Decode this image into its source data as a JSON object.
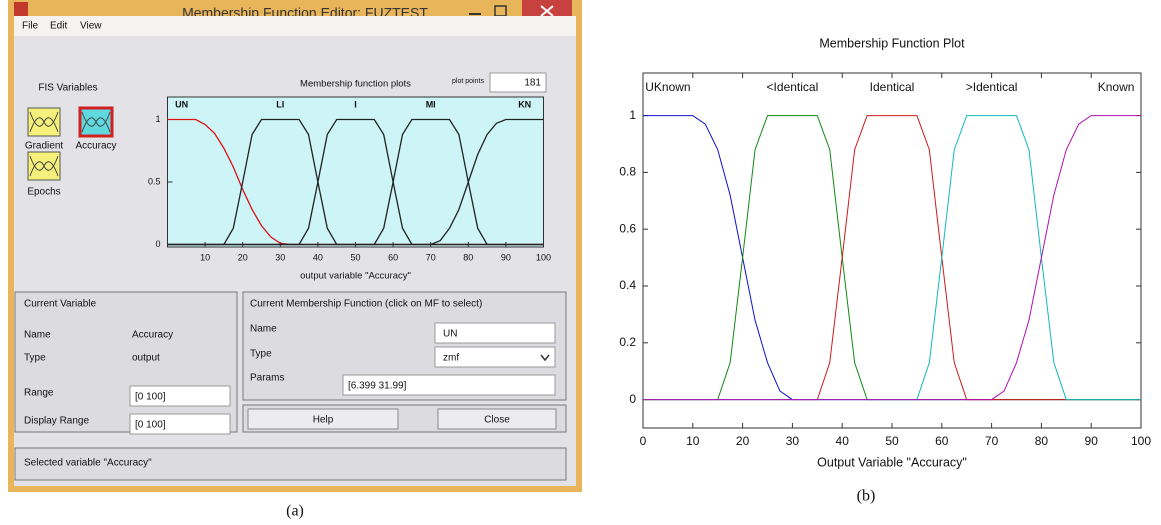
{
  "window": {
    "title": "Membership Function Editor: FUZTEST",
    "menu": [
      "File",
      "Edit",
      "View"
    ],
    "fis_variables_label": "FIS Variables",
    "variables": [
      "Gradient",
      "Accuracy",
      "Epochs"
    ],
    "plot_points_label": "plot points",
    "plot_points": 181,
    "current_variable": {
      "title": "Current Variable",
      "rows": [
        [
          "Name",
          "Accuracy"
        ],
        [
          "Type",
          "output"
        ],
        [
          "Range",
          "[0 100]"
        ],
        [
          "Display Range",
          "[0 100]"
        ]
      ]
    },
    "current_mf": {
      "title": "Current Membership Function (click on MF to select)",
      "rows": [
        [
          "Name",
          "UN"
        ],
        [
          "Type",
          "zmf"
        ],
        [
          "Params",
          "[6.399 31.99]"
        ]
      ]
    },
    "buttons": [
      "Help",
      "Close"
    ],
    "status": "Selected variable \"Accuracy\""
  },
  "captions": [
    "(a)",
    "(b)"
  ],
  "chart_data": [
    {
      "type": "line",
      "title": "Membership function plots",
      "xlabel": "output variable \"Accuracy\"",
      "x": [
        0,
        2.5,
        5,
        7.5,
        10,
        12.5,
        15,
        17.5,
        20,
        22.5,
        25,
        27.5,
        30,
        32.5,
        35,
        37.5,
        40,
        42.5,
        45,
        47.5,
        50,
        52.5,
        55,
        57.5,
        60,
        62.5,
        65,
        67.5,
        70,
        72.5,
        75,
        77.5,
        80,
        82.5,
        85,
        87.5,
        90,
        92.5,
        95,
        97.5,
        100
      ],
      "xlim": [
        0,
        100
      ],
      "xticks": [
        10,
        20,
        30,
        40,
        50,
        60,
        70,
        80,
        90,
        100
      ],
      "ylim": [
        -0.02,
        1.18
      ],
      "yticks": [
        0,
        0.5,
        1
      ],
      "series": [
        {
          "name": "UN",
          "color": "#dd1111",
          "values": [
            1,
            1,
            1,
            1,
            0.96,
            0.89,
            0.77,
            0.62,
            0.44,
            0.28,
            0.15,
            0.06,
            0.01,
            0,
            0,
            0,
            0,
            0,
            0,
            0,
            0,
            0,
            0,
            0,
            0,
            0,
            0,
            0,
            0,
            0,
            0,
            0,
            0,
            0,
            0,
            0,
            0,
            0,
            0,
            0,
            0
          ]
        },
        {
          "name": "LI",
          "color": "#222222",
          "values": [
            0,
            0,
            0,
            0,
            0,
            0,
            0,
            0.13,
            0.5,
            0.88,
            1,
            1,
            1,
            1,
            1,
            0.88,
            0.5,
            0.13,
            0,
            0,
            0,
            0,
            0,
            0,
            0,
            0,
            0,
            0,
            0,
            0,
            0,
            0,
            0,
            0,
            0,
            0,
            0,
            0,
            0,
            0,
            0
          ]
        },
        {
          "name": "I",
          "color": "#222222",
          "values": [
            0,
            0,
            0,
            0,
            0,
            0,
            0,
            0,
            0,
            0,
            0,
            0,
            0,
            0,
            0,
            0.13,
            0.5,
            0.88,
            1,
            1,
            1,
            1,
            1,
            0.88,
            0.5,
            0.13,
            0,
            0,
            0,
            0,
            0,
            0,
            0,
            0,
            0,
            0,
            0,
            0,
            0,
            0,
            0
          ]
        },
        {
          "name": "MI",
          "color": "#222222",
          "values": [
            0,
            0,
            0,
            0,
            0,
            0,
            0,
            0,
            0,
            0,
            0,
            0,
            0,
            0,
            0,
            0,
            0,
            0,
            0,
            0,
            0,
            0,
            0,
            0.13,
            0.5,
            0.88,
            1,
            1,
            1,
            1,
            1,
            0.88,
            0.5,
            0.13,
            0,
            0,
            0,
            0,
            0,
            0,
            0
          ]
        },
        {
          "name": "KN",
          "color": "#222222",
          "values": [
            0,
            0,
            0,
            0,
            0,
            0,
            0,
            0,
            0,
            0,
            0,
            0,
            0,
            0,
            0,
            0,
            0,
            0,
            0,
            0,
            0,
            0,
            0,
            0,
            0,
            0,
            0,
            0,
            0,
            0.03,
            0.13,
            0.28,
            0.5,
            0.72,
            0.88,
            0.97,
            1,
            1,
            1,
            1,
            1
          ]
        }
      ]
    },
    {
      "type": "line",
      "title": "Membership Function Plot",
      "xlabel": "Output Variable \"Accuracy\"",
      "x": [
        0,
        2.5,
        5,
        7.5,
        10,
        12.5,
        15,
        17.5,
        20,
        22.5,
        25,
        27.5,
        30,
        32.5,
        35,
        37.5,
        40,
        42.5,
        45,
        47.5,
        50,
        52.5,
        55,
        57.5,
        60,
        62.5,
        65,
        67.5,
        70,
        72.5,
        75,
        77.5,
        80,
        82.5,
        85,
        87.5,
        90,
        92.5,
        95,
        97.5,
        100
      ],
      "xlim": [
        0,
        100
      ],
      "xticks": [
        0,
        10,
        20,
        30,
        40,
        50,
        60,
        70,
        80,
        90,
        100
      ],
      "ylim": [
        -0.1,
        1.15
      ],
      "yticks": [
        0,
        0.2,
        0.4,
        0.6,
        0.8,
        1
      ],
      "series": [
        {
          "name": "UKnown",
          "color": "#1010cc",
          "values": [
            1,
            1,
            1,
            1,
            1,
            0.97,
            0.88,
            0.72,
            0.5,
            0.28,
            0.13,
            0.03,
            0,
            0,
            0,
            0,
            0,
            0,
            0,
            0,
            0,
            0,
            0,
            0,
            0,
            0,
            0,
            0,
            0,
            0,
            0,
            0,
            0,
            0,
            0,
            0,
            0,
            0,
            0,
            0,
            0
          ]
        },
        {
          "name": "<Identical",
          "color": "#108a10",
          "values": [
            0,
            0,
            0,
            0,
            0,
            0,
            0,
            0.13,
            0.5,
            0.88,
            1,
            1,
            1,
            1,
            1,
            0.88,
            0.5,
            0.13,
            0,
            0,
            0,
            0,
            0,
            0,
            0,
            0,
            0,
            0,
            0,
            0,
            0,
            0,
            0,
            0,
            0,
            0,
            0,
            0,
            0,
            0,
            0
          ]
        },
        {
          "name": "Identical",
          "color": "#d01818",
          "values": [
            0,
            0,
            0,
            0,
            0,
            0,
            0,
            0,
            0,
            0,
            0,
            0,
            0,
            0,
            0,
            0.13,
            0.5,
            0.88,
            1,
            1,
            1,
            1,
            1,
            0.88,
            0.5,
            0.13,
            0,
            0,
            0,
            0,
            0,
            0,
            0,
            0,
            0,
            0,
            0,
            0,
            0,
            0,
            0
          ]
        },
        {
          "name": ">Identical",
          "color": "#10b8c0",
          "values": [
            0,
            0,
            0,
            0,
            0,
            0,
            0,
            0,
            0,
            0,
            0,
            0,
            0,
            0,
            0,
            0,
            0,
            0,
            0,
            0,
            0,
            0,
            0,
            0.13,
            0.5,
            0.88,
            1,
            1,
            1,
            1,
            1,
            0.88,
            0.5,
            0.13,
            0,
            0,
            0,
            0,
            0,
            0,
            0
          ]
        },
        {
          "name": "Known",
          "color": "#b010b0",
          "values": [
            0,
            0,
            0,
            0,
            0,
            0,
            0,
            0,
            0,
            0,
            0,
            0,
            0,
            0,
            0,
            0,
            0,
            0,
            0,
            0,
            0,
            0,
            0,
            0,
            0,
            0,
            0,
            0,
            0,
            0.03,
            0.13,
            0.28,
            0.5,
            0.72,
            0.88,
            0.97,
            1,
            1,
            1,
            1,
            1
          ]
        }
      ]
    }
  ]
}
